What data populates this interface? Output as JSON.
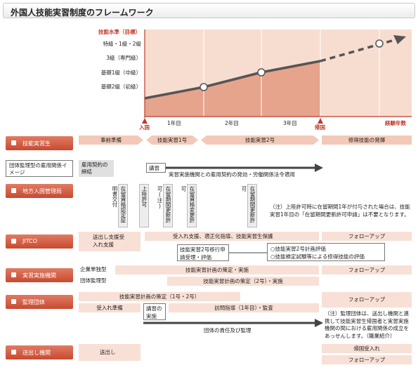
{
  "title": "外国人技能実習制度のフレームワーク",
  "chart": {
    "y_axis_label": "技能水準（目標）",
    "levels": [
      "特級・1級・2級",
      "3級（専門級）",
      "基礎1級（中級）",
      "基礎2級（初級）"
    ],
    "x_ticks": [
      "1年目",
      "2年目",
      "3年目"
    ],
    "x_axis_label": "経験年数",
    "entry_label": "入国",
    "return_label": "帰国"
  },
  "phases": {
    "prep": "事前準備",
    "tg1": "技能実習1号",
    "tg2": "技能実習2号",
    "after": "修得技能の発揮"
  },
  "rows": {
    "trainee": "技能実習生",
    "employment_image": "団体監理型の雇用関係イメージ",
    "immigration": "地方入国管理局",
    "jitco": "JITCO",
    "implementing": "実習実施機関",
    "supervising": "監理団体",
    "sending": "送出し機関"
  },
  "employment": {
    "contract": "雇用契約の締結",
    "lecture": "講習",
    "relation": "実習実施機関との雇用契約の発効・労働関係法令適用"
  },
  "immigration": {
    "v1": "在留資格認定証明書交付",
    "v2": "上陸許可",
    "v3": "在留期間更新許可(注)",
    "v4": "在留資格変更許可",
    "v5": "在留期間更新許可",
    "note": "（注）上陸許可時に在留期間1年が付与された場合は、技能実習1年目の「在留期間更新許可申請」は不要となります。"
  },
  "jitco": {
    "left": "送出し支援受入れ支援",
    "support": "受入れ支援、適正化指導、技能実習生保護",
    "transfer": "技能実習2号移行申請受理・評価",
    "eval1": "○技能実習2号計画評価",
    "eval2": "○技能検定試験等による修得技能の評価",
    "followup": "フォローアップ"
  },
  "implementing": {
    "corp": "企業単独型",
    "group": "団体監理型",
    "plan1": "技能実習計画の策定・実施",
    "plan2": "技能実習計画の策定（2号）・実施",
    "followup": "フォローアップ"
  },
  "supervising": {
    "plan": "技能実習計画の策定（1号・2号）",
    "prep": "受入れ準備",
    "lecture": "講習の実施",
    "guidance": "訪問指導（1年目）・監査",
    "responsibility": "団体の責任及び監理",
    "followup": "フォローアップ",
    "note": "（注）監理団体は、送出し機関と連携して技能実習生帰国者と実習実施機関の間における雇用関係の成立をあっせんします。（職業紹介）"
  },
  "sending": {
    "send": "送出し",
    "return": "帰国受入れ",
    "followup": "フォローアップ"
  },
  "colors": {
    "accent": "#c84a30",
    "fill": "#f2c9b8",
    "area": "#e39a80"
  }
}
